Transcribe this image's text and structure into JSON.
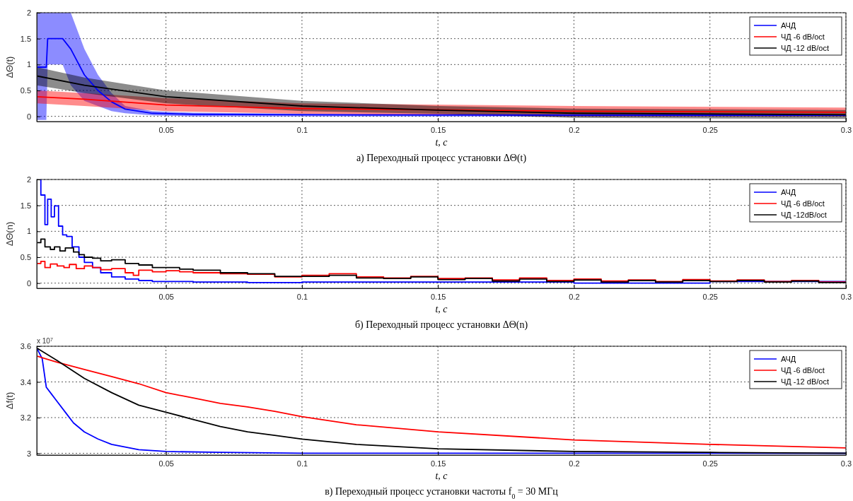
{
  "chart_data": [
    {
      "type": "line",
      "title": "а) Переходный процесс установки ΔΘ(t)",
      "xlabel": "t, с",
      "ylabel": "ΔΘ(t)",
      "xlim": [
        0.0025,
        0.3
      ],
      "xticks": [
        0.05,
        0.1,
        0.15,
        0.2,
        0.25,
        0.3
      ],
      "ylim": [
        -0.1,
        2
      ],
      "yticks": [
        0,
        0.5,
        1,
        1.5,
        2
      ],
      "grid": true,
      "legend": "top right",
      "series": [
        {
          "name": "АЧД",
          "color": "#0000ff",
          "x": [
            0.0025,
            0.006,
            0.0065,
            0.012,
            0.015,
            0.02,
            0.025,
            0.03,
            0.035,
            0.045,
            0.06,
            0.1,
            0.3
          ],
          "values": [
            0.95,
            0.95,
            1.5,
            1.5,
            1.3,
            0.8,
            0.5,
            0.28,
            0.14,
            0.06,
            0.04,
            0.03,
            0.02
          ],
          "lower": [
            -0.07,
            -0.07,
            1.0,
            1.0,
            0.6,
            0.3,
            0.2,
            0.1,
            0.06,
            0.02,
            0,
            0,
            0
          ],
          "upper": [
            2,
            2,
            2,
            2,
            2,
            1.3,
            0.8,
            0.45,
            0.2,
            0.1,
            0.07,
            0.05,
            0.03
          ]
        },
        {
          "name": "ЧД -6 dB/oct",
          "color": "#ff0000",
          "x": [
            0.0025,
            0.02,
            0.05,
            0.1,
            0.2,
            0.3
          ],
          "values": [
            0.38,
            0.33,
            0.22,
            0.15,
            0.1,
            0.08
          ],
          "lower": [
            0.25,
            0.2,
            0.1,
            0.05,
            0,
            0
          ],
          "upper": [
            0.5,
            0.45,
            0.35,
            0.25,
            0.2,
            0.17
          ]
        },
        {
          "name": "ЧД -12 dB/oct",
          "color": "#000000",
          "x": [
            0.0025,
            0.02,
            0.05,
            0.1,
            0.15,
            0.2,
            0.3
          ],
          "values": [
            0.78,
            0.6,
            0.38,
            0.2,
            0.12,
            0.06,
            0.03
          ],
          "lower": [
            0.6,
            0.45,
            0.25,
            0.1,
            0.05,
            -0.03,
            -0.05
          ],
          "upper": [
            0.95,
            0.75,
            0.5,
            0.3,
            0.2,
            0.15,
            0.12
          ]
        }
      ]
    },
    {
      "type": "step",
      "title": "б) Переходный процесс установки ΔΘ(n)",
      "xlabel": "t, с",
      "ylabel": "ΔΘ(n)",
      "xlim": [
        0.0025,
        0.3
      ],
      "xticks": [
        0.05,
        0.1,
        0.15,
        0.2,
        0.25,
        0.3
      ],
      "ylim": [
        -0.1,
        2
      ],
      "yticks": [
        0,
        0.5,
        1,
        1.5,
        2
      ],
      "grid": true,
      "legend": "top right",
      "series": [
        {
          "name": "АЧД",
          "color": "#0000ff",
          "x": [
            0.0025,
            0.004,
            0.0055,
            0.0065,
            0.0078,
            0.009,
            0.0105,
            0.012,
            0.0135,
            0.0155,
            0.018,
            0.02,
            0.023,
            0.026,
            0.03,
            0.035,
            0.04,
            0.045,
            0.05,
            0.06,
            0.08,
            0.1,
            0.15,
            0.2,
            0.25,
            0.3
          ],
          "values": [
            2,
            1.7,
            1.13,
            1.62,
            1.28,
            1.49,
            1.1,
            0.93,
            0.9,
            0.7,
            0.5,
            0.4,
            0.3,
            0.2,
            0.12,
            0.08,
            0.05,
            0.03,
            0.03,
            0.02,
            0.01,
            0.02,
            0.02,
            0,
            0.03,
            0.02
          ]
        },
        {
          "name": "ЧД -6 dB/oct",
          "color": "#ff0000",
          "x": [
            0.0025,
            0.004,
            0.0055,
            0.0075,
            0.01,
            0.0125,
            0.0145,
            0.017,
            0.02,
            0.023,
            0.026,
            0.03,
            0.035,
            0.038,
            0.04,
            0.045,
            0.05,
            0.055,
            0.06,
            0.07,
            0.08,
            0.09,
            0.1,
            0.11,
            0.12,
            0.13,
            0.14,
            0.15,
            0.16,
            0.17,
            0.18,
            0.19,
            0.2,
            0.21,
            0.22,
            0.23,
            0.24,
            0.25,
            0.26,
            0.27,
            0.28,
            0.29,
            0.3
          ],
          "values": [
            0.38,
            0.42,
            0.3,
            0.37,
            0.33,
            0.3,
            0.36,
            0.28,
            0.33,
            0.3,
            0.26,
            0.28,
            0.2,
            0.15,
            0.25,
            0.22,
            0.24,
            0.22,
            0.2,
            0.18,
            0.17,
            0.12,
            0.15,
            0.18,
            0.12,
            0.1,
            0.13,
            0.09,
            0.1,
            0.06,
            0.1,
            0.05,
            0.08,
            0.04,
            0.06,
            0.03,
            0.07,
            0.04,
            0.06,
            0.03,
            0.05,
            0.02,
            0.03
          ]
        },
        {
          "name": "ЧД -12dB/oct",
          "color": "#000000",
          "x": [
            0.0025,
            0.004,
            0.0055,
            0.0075,
            0.009,
            0.011,
            0.013,
            0.016,
            0.018,
            0.02,
            0.023,
            0.026,
            0.03,
            0.035,
            0.04,
            0.045,
            0.05,
            0.055,
            0.06,
            0.07,
            0.08,
            0.09,
            0.1,
            0.11,
            0.12,
            0.13,
            0.14,
            0.15,
            0.16,
            0.17,
            0.18,
            0.19,
            0.2,
            0.21,
            0.22,
            0.23,
            0.24,
            0.25,
            0.26,
            0.27,
            0.28,
            0.29,
            0.3
          ],
          "values": [
            0.78,
            0.85,
            0.7,
            0.65,
            0.7,
            0.62,
            0.68,
            0.6,
            0.55,
            0.5,
            0.48,
            0.43,
            0.45,
            0.38,
            0.35,
            0.3,
            0.3,
            0.27,
            0.25,
            0.2,
            0.18,
            0.13,
            0.13,
            0.15,
            0.1,
            0.09,
            0.12,
            0.07,
            0.09,
            0.04,
            0.08,
            0.03,
            0.06,
            0.02,
            0.05,
            0.02,
            0.05,
            0.03,
            0.05,
            0.02,
            0.04,
            0.01,
            0.02
          ]
        }
      ]
    },
    {
      "type": "line",
      "title": "в) Переходный процесс установки частоты  f$_{0}$ = 30 МГц",
      "xlabel": "t, с",
      "ylabel": "Δf(t)",
      "annotations": [
        "x 10$^{7}$"
      ],
      "xlim": [
        0.0025,
        0.3
      ],
      "xticks": [
        0.05,
        0.1,
        0.15,
        0.2,
        0.25,
        0.3
      ],
      "ylim": [
        2.99,
        3.6
      ],
      "yticks": [
        3,
        3.2,
        3.4,
        3.6
      ],
      "grid": true,
      "legend": "top right",
      "series": [
        {
          "name": "АЧД",
          "color": "#0000ff",
          "x": [
            0.0025,
            0.0045,
            0.006,
            0.008,
            0.01,
            0.013,
            0.016,
            0.02,
            0.025,
            0.03,
            0.035,
            0.04,
            0.05,
            0.07,
            0.1,
            0.3
          ],
          "values": [
            3.59,
            3.53,
            3.37,
            3.33,
            3.29,
            3.23,
            3.17,
            3.12,
            3.08,
            3.05,
            3.035,
            3.02,
            3.01,
            3.005,
            3.0,
            3.0
          ]
        },
        {
          "name": "ЧД -6 dB/oct",
          "color": "#ff0000",
          "x": [
            0.0025,
            0.01,
            0.02,
            0.03,
            0.04,
            0.05,
            0.06,
            0.07,
            0.08,
            0.09,
            0.1,
            0.12,
            0.15,
            0.2,
            0.25,
            0.3
          ],
          "values": [
            3.545,
            3.51,
            3.47,
            3.43,
            3.39,
            3.34,
            3.31,
            3.28,
            3.26,
            3.235,
            3.205,
            3.16,
            3.12,
            3.075,
            3.05,
            3.03
          ]
        },
        {
          "name": "ЧД -12 dB/oct",
          "color": "#000000",
          "x": [
            0.0025,
            0.01,
            0.02,
            0.03,
            0.04,
            0.05,
            0.06,
            0.07,
            0.08,
            0.09,
            0.1,
            0.12,
            0.15,
            0.2,
            0.25,
            0.3
          ],
          "values": [
            3.59,
            3.52,
            3.42,
            3.34,
            3.27,
            3.23,
            3.19,
            3.15,
            3.12,
            3.1,
            3.08,
            3.05,
            3.025,
            3.01,
            3.005,
            3.0
          ]
        }
      ]
    }
  ]
}
